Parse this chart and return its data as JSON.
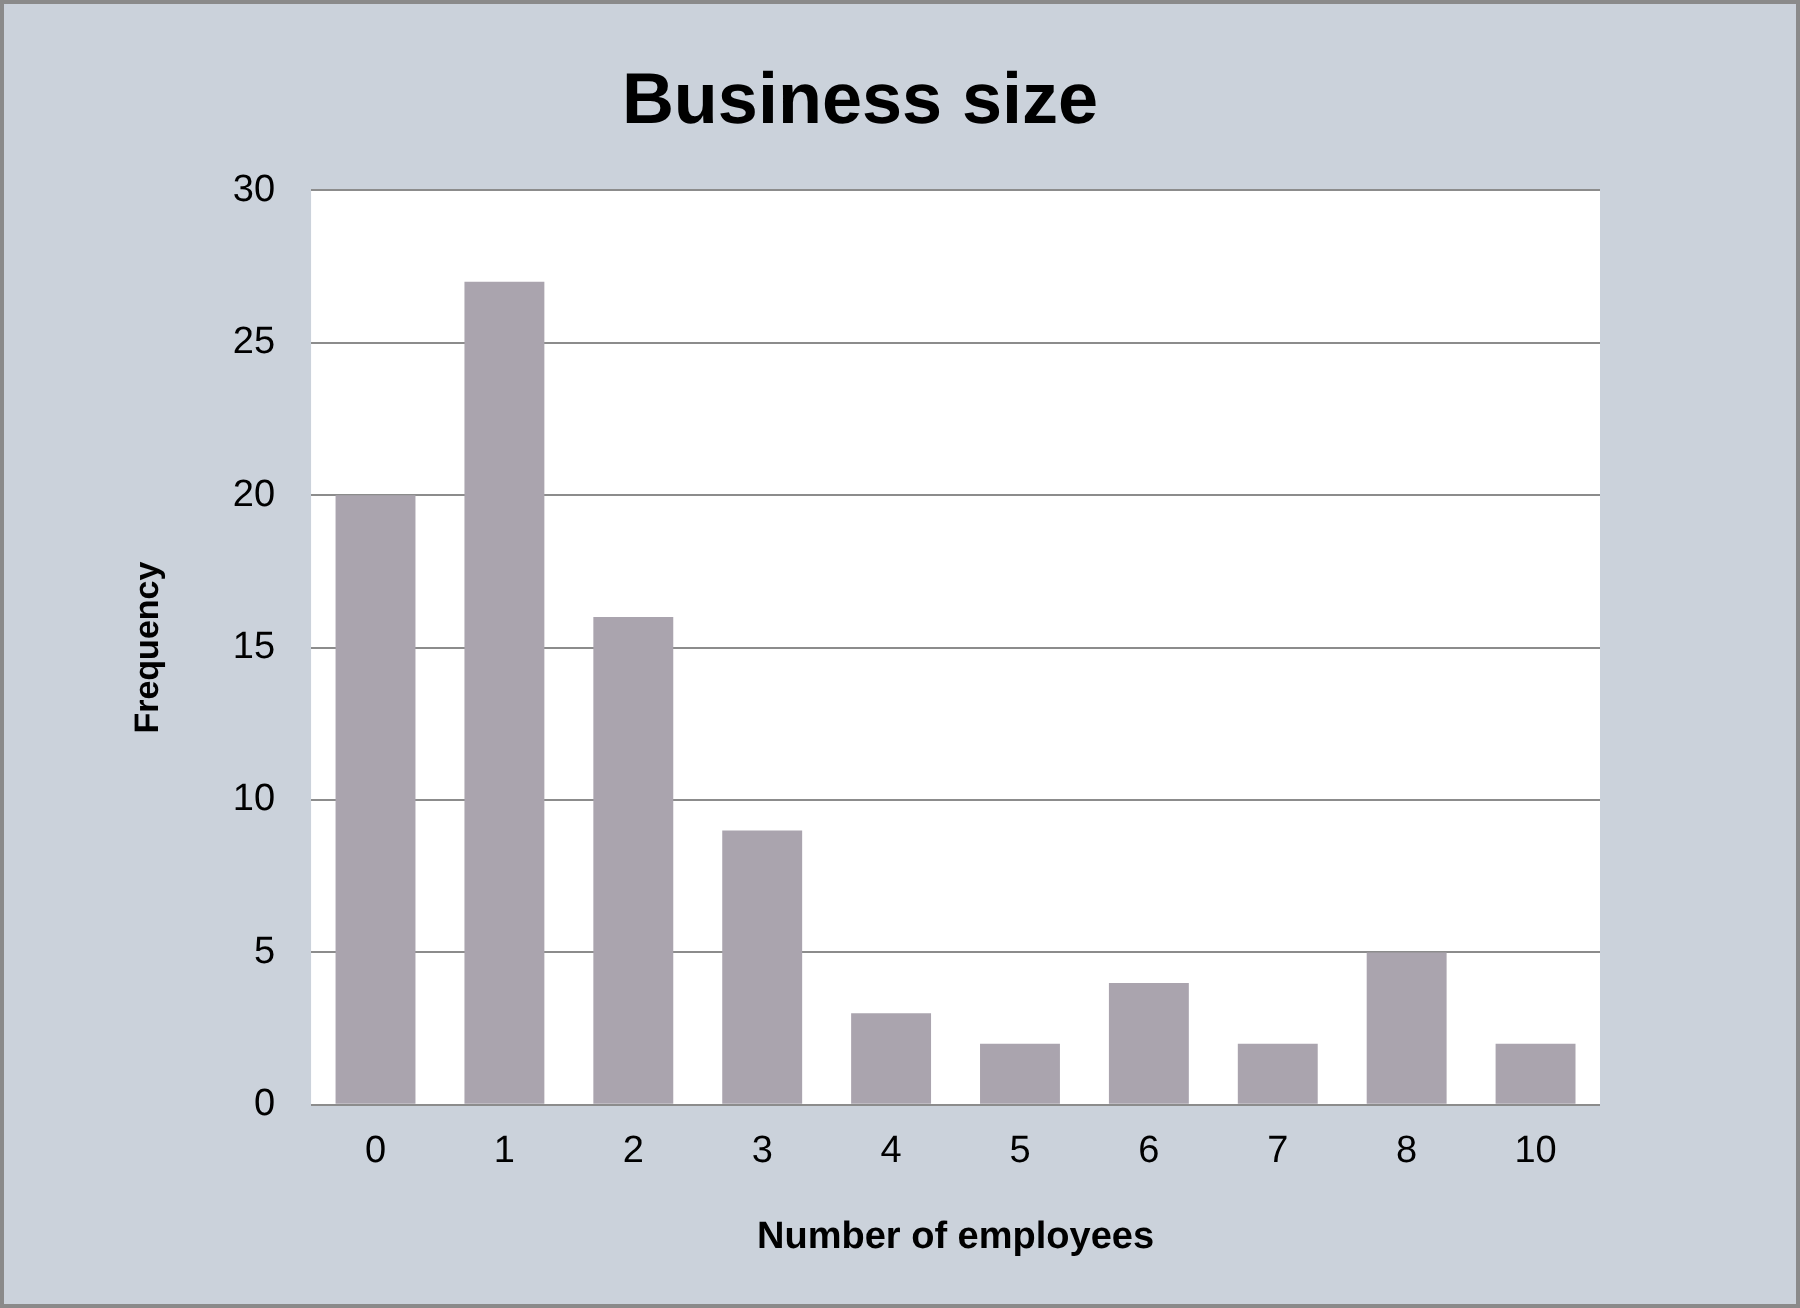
{
  "chart_data": {
    "type": "bar",
    "title": "Business size",
    "xlabel": "Number of employees",
    "ylabel": "Frequency",
    "categories": [
      "0",
      "1",
      "2",
      "3",
      "4",
      "5",
      "6",
      "7",
      "8",
      "10"
    ],
    "values": [
      20,
      27,
      16,
      9,
      3,
      2,
      4,
      2,
      5,
      2
    ],
    "color": "#aaa4ae",
    "ylim": [
      0,
      30
    ],
    "yticks": [
      0,
      5,
      10,
      15,
      20,
      25,
      30
    ],
    "grid": "y"
  }
}
